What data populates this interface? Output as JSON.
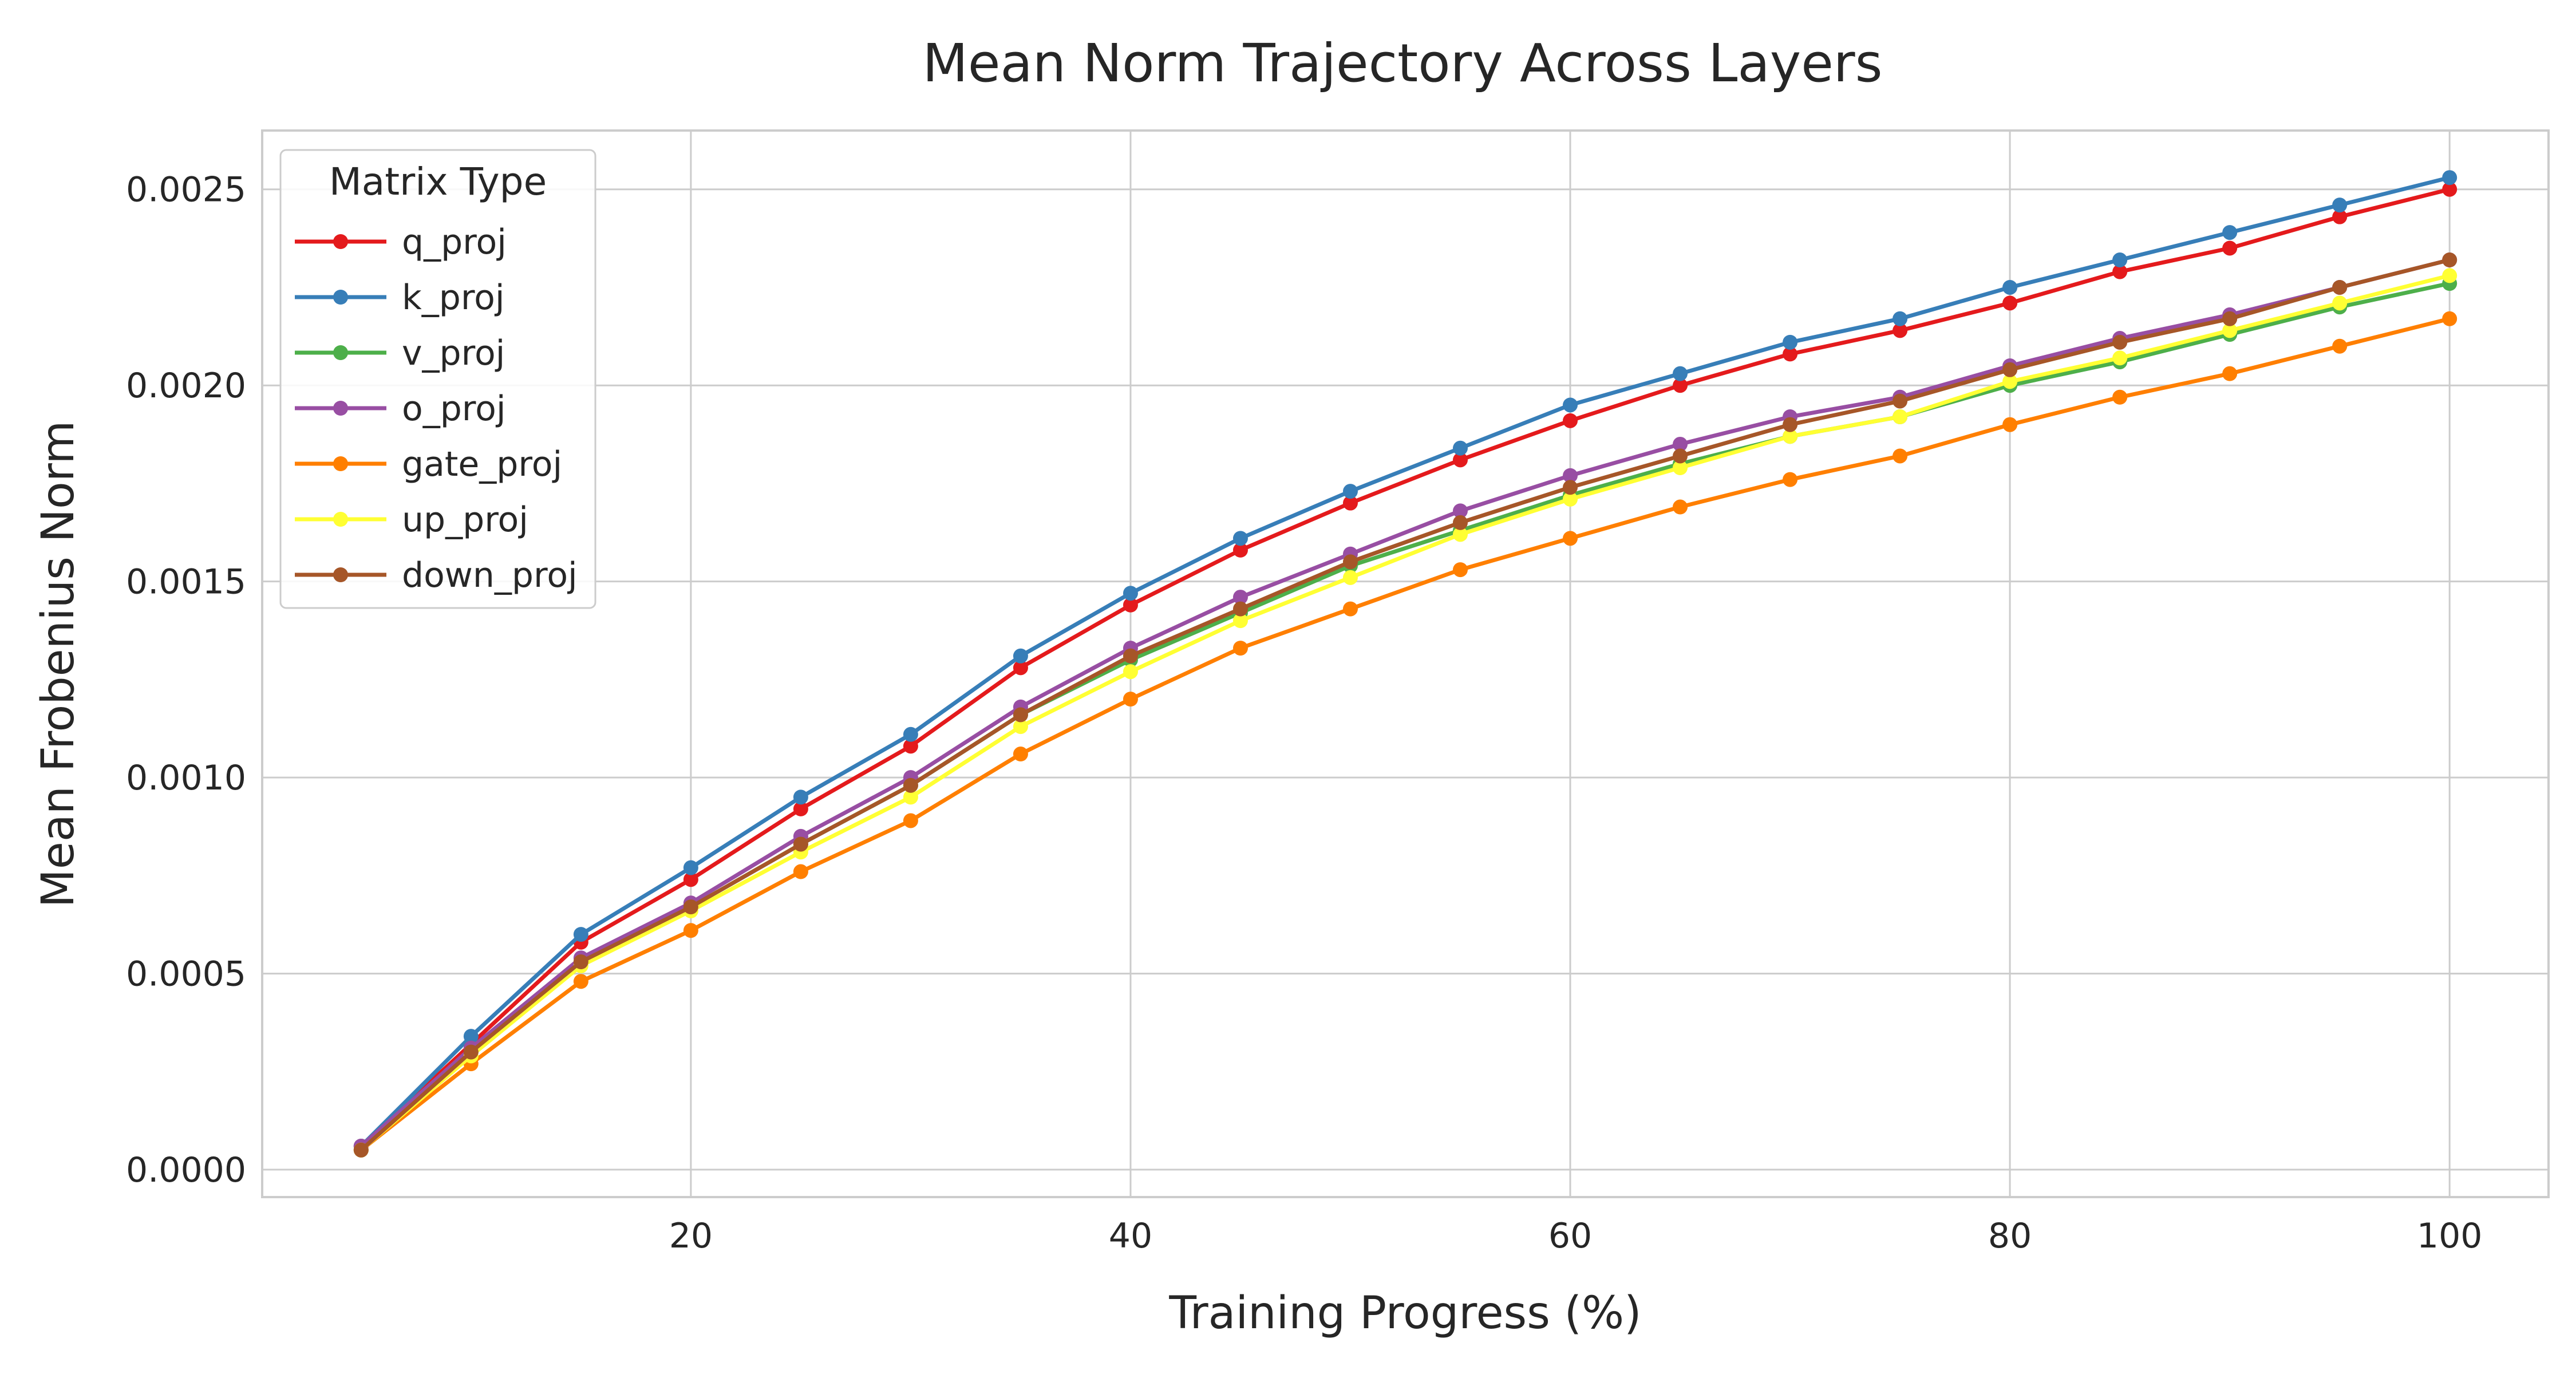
{
  "chart_data": {
    "type": "line",
    "title": "Mean Norm Trajectory Across Layers",
    "xlabel": "Training Progress (%)",
    "ylabel": "Mean Frobenius Norm",
    "xlim": [
      0.5,
      104.5
    ],
    "ylim": [
      -7e-05,
      0.00265
    ],
    "x_ticks": [
      20,
      40,
      60,
      80,
      100
    ],
    "x_tick_labels": [
      "20",
      "40",
      "60",
      "80",
      "100"
    ],
    "y_ticks": [
      0,
      0.0005,
      0.001,
      0.0015,
      0.002,
      0.0025
    ],
    "y_tick_labels": [
      "0.0000",
      "0.0005",
      "0.0010",
      "0.0015",
      "0.0020",
      "0.0025"
    ],
    "grid": true,
    "legend": {
      "title": "Matrix Type",
      "placement": "top-left"
    },
    "x": [
      5,
      10,
      15,
      20,
      25,
      30,
      35,
      40,
      45,
      50,
      55,
      60,
      65,
      70,
      75,
      80,
      85,
      90,
      95,
      100
    ],
    "series": [
      {
        "name": "q_proj",
        "color": "#e41a1c",
        "values": [
          6e-05,
          0.00032,
          0.00058,
          0.00074,
          0.00092,
          0.00108,
          0.00128,
          0.00144,
          0.00158,
          0.0017,
          0.00181,
          0.00191,
          0.002,
          0.00208,
          0.00214,
          0.00221,
          0.00229,
          0.00235,
          0.00243,
          0.0025
        ]
      },
      {
        "name": "k_proj",
        "color": "#377eb8",
        "values": [
          6e-05,
          0.00034,
          0.0006,
          0.00077,
          0.00095,
          0.00111,
          0.00131,
          0.00147,
          0.00161,
          0.00173,
          0.00184,
          0.00195,
          0.00203,
          0.00211,
          0.00217,
          0.00225,
          0.00232,
          0.00239,
          0.00246,
          0.00253
        ]
      },
      {
        "name": "v_proj",
        "color": "#4daf4a",
        "values": [
          5e-05,
          0.0003,
          0.00053,
          0.00067,
          0.00083,
          0.00098,
          0.00116,
          0.0013,
          0.00142,
          0.00154,
          0.00163,
          0.00172,
          0.0018,
          0.00187,
          0.00192,
          0.002,
          0.00206,
          0.00213,
          0.0022,
          0.00226
        ]
      },
      {
        "name": "o_proj",
        "color": "#984ea3",
        "values": [
          6e-05,
          0.00031,
          0.00054,
          0.00068,
          0.00085,
          0.001,
          0.00118,
          0.00133,
          0.00146,
          0.00157,
          0.00168,
          0.00177,
          0.00185,
          0.00192,
          0.00197,
          0.00205,
          0.00212,
          0.00218,
          0.00225,
          0.00232
        ]
      },
      {
        "name": "gate_proj",
        "color": "#ff7f00",
        "values": [
          5e-05,
          0.00027,
          0.00048,
          0.00061,
          0.00076,
          0.00089,
          0.00106,
          0.0012,
          0.00133,
          0.00143,
          0.00153,
          0.00161,
          0.00169,
          0.00176,
          0.00182,
          0.0019,
          0.00197,
          0.00203,
          0.0021,
          0.00217
        ]
      },
      {
        "name": "up_proj",
        "color": "#ffff33",
        "values": [
          5e-05,
          0.00029,
          0.00052,
          0.00066,
          0.00081,
          0.00095,
          0.00113,
          0.00127,
          0.0014,
          0.00151,
          0.00162,
          0.00171,
          0.00179,
          0.00187,
          0.00192,
          0.00201,
          0.00207,
          0.00214,
          0.00221,
          0.00228
        ]
      },
      {
        "name": "down_proj",
        "color": "#a65628",
        "values": [
          5e-05,
          0.0003,
          0.00053,
          0.00067,
          0.00083,
          0.00098,
          0.00116,
          0.00131,
          0.00143,
          0.00155,
          0.00165,
          0.00174,
          0.00182,
          0.0019,
          0.00196,
          0.00204,
          0.00211,
          0.00217,
          0.00225,
          0.00232
        ]
      }
    ]
  }
}
